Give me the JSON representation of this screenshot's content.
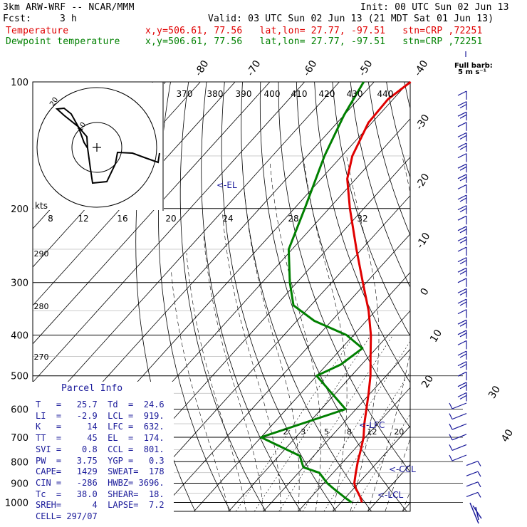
{
  "header": {
    "model": "3km ARW-WRF -- NCAR/MMM",
    "init": "Init: 00 UTC Sun 02 Jun 13",
    "fcst_label": "Fcst:",
    "fcst_value": "3 h",
    "valid": "Valid: 03 UTC Sun 02 Jun 13 (21 MDT Sat 01 Jun 13)",
    "temp_label": "Temperature",
    "temp_loc": "x,y=506.61, 77.56   lat,lon= 27.77, -97.51   stn=CRP ,72251",
    "dew_label": "Dewpoint temperature",
    "dew_loc": "x,y=506.61, 77.56   lat,lon= 27.77, -97.51   stn=CRP ,72251"
  },
  "colors": {
    "temperature": "#e00000",
    "dewpoint": "#008000",
    "barbs": "#1a1a9a",
    "grid": "#000000"
  },
  "chart_data": {
    "type": "line",
    "pressure_labels": [
      "100",
      "200",
      "300",
      "400",
      "500",
      "600",
      "700",
      "800",
      "900",
      "1000"
    ],
    "pressure_levels": [
      100,
      200,
      300,
      400,
      500,
      600,
      700,
      800,
      900,
      1000
    ],
    "isotherm_labels": [
      "-80",
      "-70",
      "-60",
      "-50",
      "-40",
      "-30",
      "-20",
      "-10",
      "0",
      "10",
      "20",
      "30",
      "40"
    ],
    "isotherm_values": [
      -80,
      -70,
      -60,
      -50,
      -40,
      -30,
      -20,
      -10,
      0,
      10,
      20,
      30,
      40
    ],
    "theta_labels": [
      "370",
      "380",
      "390",
      "400",
      "410",
      "420",
      "430",
      "440"
    ],
    "mixing_ratio_labels": [
      "2",
      "3",
      "5",
      "8",
      "12",
      "20"
    ],
    "adiabat_labels": [
      "290",
      "280",
      "270"
    ],
    "hodo_speed_labels": [
      "kts",
      "8",
      "12",
      "16",
      "20",
      "24",
      "28",
      "32"
    ],
    "full_barb_label": "Full barb:",
    "full_barb_unit": "5 m s⁻¹",
    "annotations": [
      "<-EL",
      "<-LFC",
      "<-CCL",
      "<-LCL"
    ],
    "hodo_labels": [
      "20",
      "10"
    ],
    "series": [
      {
        "name": "Temperature",
        "color": "#e00000",
        "points": [
          [
            1000,
            26.0
          ],
          [
            975,
            24.4
          ],
          [
            950,
            22.5
          ],
          [
            925,
            20.5
          ],
          [
            900,
            18.8
          ],
          [
            850,
            16.5
          ],
          [
            800,
            14.2
          ],
          [
            750,
            12.0
          ],
          [
            700,
            9.5
          ],
          [
            650,
            6.2
          ],
          [
            600,
            3.0
          ],
          [
            550,
            -0.5
          ],
          [
            500,
            -4.5
          ],
          [
            450,
            -9.5
          ],
          [
            400,
            -15.0
          ],
          [
            350,
            -22.0
          ],
          [
            300,
            -31.0
          ],
          [
            250,
            -41.5
          ],
          [
            200,
            -54.0
          ],
          [
            170,
            -62.5
          ],
          [
            150,
            -67.0
          ],
          [
            125,
            -71.0
          ],
          [
            110,
            -71.5
          ],
          [
            100,
            -69.5
          ]
        ]
      },
      {
        "name": "Dewpoint temperature",
        "color": "#008000",
        "points": [
          [
            1000,
            23.0
          ],
          [
            975,
            20.0
          ],
          [
            950,
            17.0
          ],
          [
            925,
            14.0
          ],
          [
            900,
            11.0
          ],
          [
            850,
            6.0
          ],
          [
            825,
            0.0
          ],
          [
            775,
            -4.0
          ],
          [
            700,
            -20.0
          ],
          [
            600,
            -3.0
          ],
          [
            500,
            -20.0
          ],
          [
            470,
            -16.0
          ],
          [
            430,
            -14.0
          ],
          [
            400,
            -22.0
          ],
          [
            370,
            -35.0
          ],
          [
            340,
            -45.0
          ],
          [
            300,
            -52.0
          ],
          [
            250,
            -61.0
          ],
          [
            200,
            -67.0
          ],
          [
            150,
            -75.0
          ],
          [
            120,
            -80.0
          ],
          [
            100,
            -83.0
          ]
        ]
      }
    ]
  },
  "parcel_info": {
    "title": "Parcel Info",
    "rows": [
      "T   =   25.7  Td  =  24.6",
      "LI  =   -2.9  LCL =  919.",
      "K   =     14  LFC =  632.",
      "TT  =     45  EL  =  174.",
      "SVI =    0.8  CCL =  801.",
      "PW  =   3.75  YGP =   0.3",
      "CAPE=   1429  SWEAT=  178",
      "CIN =   -286  HWBZ= 3696.",
      "Tc  =   38.0  SHEAR=  18.",
      "SREH=      4  LAPSE=  7.2",
      "CELL= 297/07"
    ]
  }
}
